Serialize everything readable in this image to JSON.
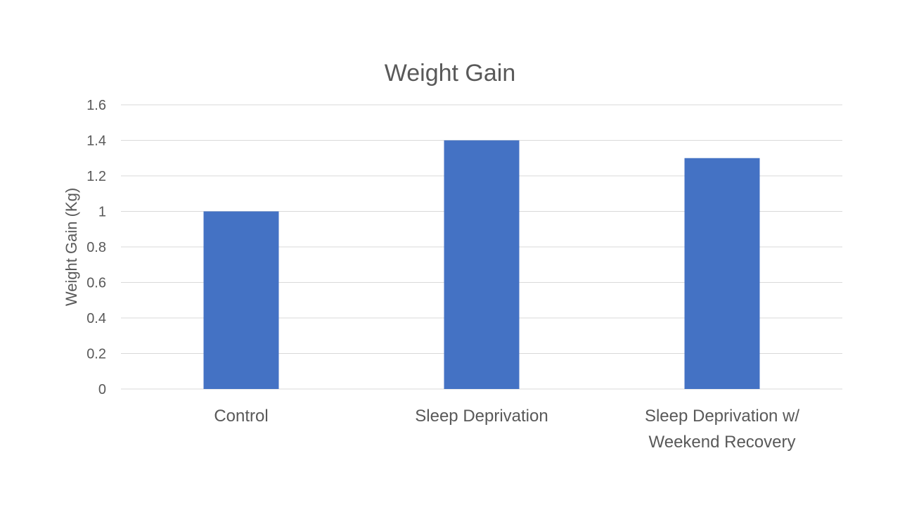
{
  "chart_data": {
    "type": "bar",
    "title": "Weight Gain",
    "xlabel": "",
    "ylabel": "Weight Gain (Kg)",
    "categories": [
      [
        "Control"
      ],
      [
        "Sleep Deprivation"
      ],
      [
        "Sleep Deprivation w/",
        "Weekend Recovery"
      ]
    ],
    "values": [
      1.0,
      1.4,
      1.3
    ],
    "ylim": [
      0,
      1.6
    ],
    "yticks": [
      "0",
      "0.2",
      "0.4",
      "0.6",
      "0.8",
      "1",
      "1.2",
      "1.4",
      "1.6"
    ],
    "grid": true,
    "legend": "none",
    "colors": {
      "bar": "#4472C4",
      "text": "#595959",
      "grid": "#D9D9D9"
    }
  }
}
